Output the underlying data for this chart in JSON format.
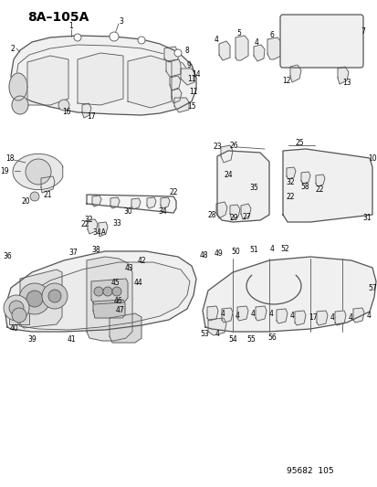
{
  "title": "8A–105A",
  "background_color": "#ffffff",
  "footer_text": "95682  105",
  "line_color": "#555555",
  "label_color": "#000000",
  "label_fontsize": 5.5,
  "title_fontsize": 10,
  "title_bold": true,
  "fig_width": 4.14,
  "fig_height": 5.33,
  "dpi": 100
}
